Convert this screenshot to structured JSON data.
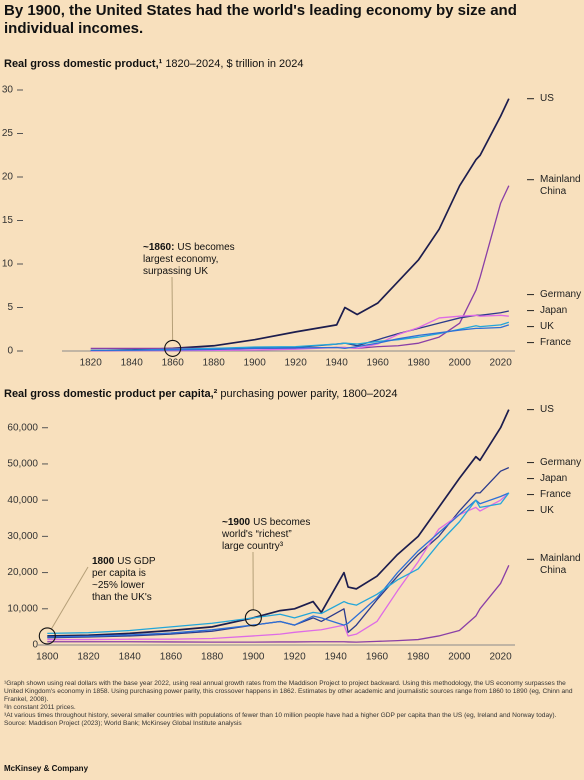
{
  "title": "By 1900, the United States had the world's leading economy by size and individual incomes.",
  "chart_data": [
    {
      "type": "line",
      "title": "Real gross domestic product,¹",
      "title_detail": "1820–2024, $ trillion in 2024",
      "x": [
        1820,
        1840,
        1860,
        1880,
        1900,
        1920,
        1940,
        1944,
        1950,
        1960,
        1970,
        1980,
        1990,
        2000,
        2008,
        2010,
        2020,
        2024
      ],
      "xlim": [
        1806,
        2027
      ],
      "xticks": [
        1820,
        1840,
        1860,
        1880,
        1900,
        1920,
        1940,
        1960,
        1980,
        2000,
        2020
      ],
      "ylim": [
        0,
        30
      ],
      "yticks": [
        0,
        5,
        10,
        15,
        20,
        25,
        30
      ],
      "series": [
        {
          "name": "US",
          "color": "#1c1d4e",
          "values": [
            0.05,
            0.12,
            0.3,
            0.6,
            1.3,
            2.2,
            3.0,
            5.0,
            4.2,
            5.5,
            8.0,
            10.5,
            14.0,
            19.0,
            22.0,
            22.5,
            27.0,
            29.0
          ]
        },
        {
          "name": "Mainland China",
          "color": "#8a3fa6",
          "values": [
            0.3,
            0.3,
            0.3,
            0.3,
            0.3,
            0.3,
            0.4,
            0.4,
            0.3,
            0.5,
            0.6,
            0.9,
            1.6,
            3.2,
            7.0,
            8.5,
            17.0,
            19.0
          ]
        },
        {
          "name": "Germany",
          "color": "#2b3a8c",
          "values": [
            0.05,
            0.07,
            0.1,
            0.18,
            0.35,
            0.4,
            0.8,
            0.9,
            0.6,
            1.3,
            2.0,
            2.6,
            3.2,
            3.8,
            4.1,
            4.1,
            4.4,
            4.6
          ]
        },
        {
          "name": "Japan",
          "color": "#de6be6",
          "values": [
            0.03,
            0.04,
            0.05,
            0.07,
            0.12,
            0.2,
            0.4,
            0.4,
            0.3,
            0.8,
            1.9,
            2.7,
            3.8,
            4.0,
            4.1,
            4.0,
            4.1,
            4.0
          ]
        },
        {
          "name": "UK",
          "color": "#23a6d9",
          "values": [
            0.07,
            0.11,
            0.2,
            0.3,
            0.45,
            0.5,
            0.8,
            0.9,
            0.8,
            1.1,
            1.3,
            1.6,
            2.0,
            2.5,
            2.9,
            2.8,
            3.0,
            3.3
          ]
        },
        {
          "name": "France",
          "color": "#2e6fd6",
          "values": [
            0.07,
            0.09,
            0.12,
            0.17,
            0.3,
            0.35,
            0.4,
            0.3,
            0.5,
            0.9,
            1.4,
            1.8,
            2.1,
            2.4,
            2.6,
            2.6,
            2.7,
            3.0
          ]
        }
      ],
      "annotations": [
        {
          "bold": "~1860:",
          "lines": [
            "US becomes",
            "largest economy,",
            "surpassing UK"
          ],
          "x": 1860
        }
      ]
    },
    {
      "type": "line",
      "title": "Real gross domestic product per capita,²",
      "title_detail": "purchasing power parity, 1800–2024",
      "x": [
        1800,
        1820,
        1840,
        1860,
        1880,
        1900,
        1913,
        1920,
        1929,
        1933,
        1944,
        1946,
        1950,
        1960,
        1970,
        1980,
        1990,
        2000,
        2008,
        2010,
        2020,
        2024
      ],
      "xlim": [
        1795,
        2027
      ],
      "xticks": [
        1800,
        1820,
        1840,
        1860,
        1880,
        1900,
        1920,
        1940,
        1960,
        1980,
        2000,
        2020
      ],
      "ylim": [
        0,
        66000
      ],
      "yticks": [
        0,
        {
          "value": 10000,
          "label": "10,000"
        },
        {
          "value": 20000,
          "label": "20,000"
        },
        {
          "value": 30000,
          "label": "30,000"
        },
        {
          "value": 40000,
          "label": "40,000"
        },
        {
          "value": 50000,
          "label": "50,000"
        },
        {
          "value": 60000,
          "label": "60,000"
        }
      ],
      "series": [
        {
          "name": "US",
          "color": "#1c1d4e",
          "values": [
            2500,
            2700,
            3200,
            4000,
            5000,
            7500,
            9500,
            10000,
            12000,
            9000,
            20000,
            16000,
            15500,
            19000,
            25000,
            30000,
            38000,
            46000,
            52000,
            51000,
            60000,
            65000
          ]
        },
        {
          "name": "Germany",
          "color": "#2b3a8c",
          "values": [
            2000,
            2200,
            2500,
            3000,
            3800,
            5500,
            6500,
            5500,
            7500,
            6500,
            10000,
            3500,
            5500,
            12500,
            19000,
            25000,
            30000,
            37000,
            42000,
            42000,
            48000,
            49000
          ]
        },
        {
          "name": "Japan",
          "color": "#de6be6",
          "values": [
            1500,
            1500,
            1600,
            1600,
            1800,
            2500,
            3000,
            3500,
            4000,
            4200,
            5500,
            2500,
            3000,
            6500,
            15000,
            23000,
            32000,
            36000,
            38000,
            37000,
            40000,
            42000
          ]
        },
        {
          "name": "France",
          "color": "#2e6fd6",
          "values": [
            2200,
            2400,
            2800,
            3300,
            4200,
            5500,
            6500,
            5500,
            8000,
            7500,
            5500,
            6000,
            8000,
            13000,
            20000,
            26000,
            31000,
            36000,
            40000,
            39000,
            41000,
            42000
          ]
        },
        {
          "name": "UK",
          "color": "#23a6d9",
          "values": [
            3200,
            3400,
            4000,
            5000,
            6000,
            7500,
            8500,
            7500,
            9000,
            8700,
            12000,
            11500,
            11000,
            14000,
            18000,
            21000,
            28000,
            34000,
            40000,
            38000,
            39000,
            42000
          ]
        },
        {
          "name": "Mainland China",
          "color": "#8a3fa6",
          "values": [
            900,
            900,
            900,
            850,
            800,
            800,
            850,
            850,
            900,
            900,
            900,
            850,
            800,
            1000,
            1200,
            1500,
            2500,
            4000,
            8000,
            10000,
            17000,
            22000
          ]
        }
      ],
      "annotations": [
        {
          "bold": "1800",
          "lines": [
            "US GDP",
            "per capita is",
            "~25% lower",
            "than the UK's"
          ],
          "x": 1800
        },
        {
          "bold": "~1900",
          "lines": [
            "US becomes",
            "world's “richest”",
            "large country³"
          ],
          "x": 1900
        }
      ]
    }
  ],
  "footnotes": [
    "¹Graph shown using real dollars with the base year 2022, using real annual growth rates from the Maddison Project to project backward. Using this methodology, the US economy surpasses the United Kingdom's economy in 1858. Using purchasing power parity, this crossover happens in 1862. Estimates by other academic and journalistic sources range from 1860 to 1890 (eg, Chinn and Frankel, 2008).",
    "²In constant 2011 prices.",
    "³At various times throughout history, several smaller countries with populations of fewer than 10 million people have had a higher GDP per capita than the US (eg, Ireland and Norway today)."
  ],
  "source": "Source: Maddison Project (2023); World Bank; McKinsey Global Institute analysis",
  "brand": "McKinsey & Company"
}
